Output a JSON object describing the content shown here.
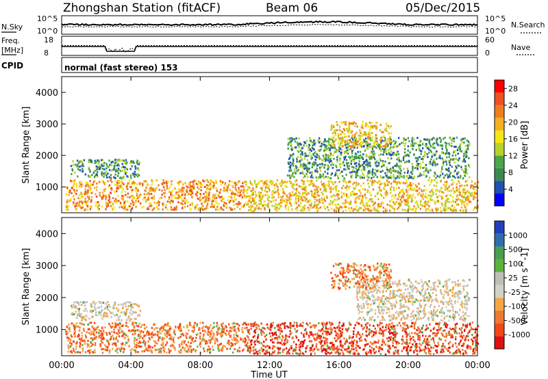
{
  "header": {
    "station": "Zhongshan Station (fitACF)",
    "beam": "Beam 06",
    "date": "05/Dec/2015"
  },
  "noise_panel": {
    "left_label": "N.Sky",
    "left_ticks": [
      "10^5",
      "10^0"
    ],
    "right_label": "N.Search",
    "right_ticks": [
      "10^5",
      "10^0"
    ]
  },
  "freq_panel": {
    "left_label_1": "Freq.",
    "left_label_2": "[MHz]",
    "left_ticks": [
      "18",
      "8"
    ],
    "right_label": "Nave",
    "right_ticks": [
      "60",
      "0"
    ]
  },
  "cpid_panel": {
    "label": "CPID",
    "text": "normal (fast stereo) 153"
  },
  "x_axis": {
    "label": "Time UT",
    "ticks": [
      "00:00",
      "04:00",
      "08:00",
      "12:00",
      "16:00",
      "20:00",
      "00:00"
    ]
  },
  "colors": {
    "power_scale": [
      "#0000ff",
      "#2050b0",
      "#3a8a50",
      "#49a74a",
      "#b8d22a",
      "#f5e614",
      "#f4b020",
      "#f07d1c",
      "#ee5020",
      "#ff0000"
    ],
    "velocity_scale": [
      "#e01010",
      "#f24818",
      "#f07830",
      "#f5a545",
      "#d2d2c8",
      "#bebeb9",
      "#5ab43c",
      "#46a050",
      "#2e6eb0",
      "#2040c0"
    ]
  },
  "chart_data": [
    {
      "type": "heatmap",
      "title": "",
      "xlabel": "Time UT",
      "ylabel": "Slant Range [km]",
      "xlim_hours": [
        0,
        24
      ],
      "ylim_km": [
        180,
        4500
      ],
      "y_ticks": [
        "1000",
        "2000",
        "3000",
        "4000"
      ],
      "colorbar": {
        "label": "Power [dB]",
        "ticks": [
          "4",
          "8",
          "12",
          "16",
          "20",
          "24",
          "28"
        ],
        "range": [
          0,
          30
        ]
      },
      "scatter_regions": [
        {
          "t_start": 0.2,
          "t_end": 10.5,
          "r_min": 300,
          "r_max": 1250,
          "value": "16-30 dB"
        },
        {
          "t_start": 0.5,
          "t_end": 4.5,
          "r_min": 1300,
          "r_max": 1900,
          "value": "4-16 dB"
        },
        {
          "t_start": 10.5,
          "t_end": 24,
          "r_min": 250,
          "r_max": 1250,
          "value": "8-24 dB"
        },
        {
          "t_start": 13,
          "t_end": 23.5,
          "r_min": 1300,
          "r_max": 2600,
          "value": "4-20 dB"
        },
        {
          "t_start": 15.5,
          "t_end": 19,
          "r_min": 2300,
          "r_max": 3100,
          "value": "8-20 dB"
        }
      ]
    },
    {
      "type": "heatmap",
      "title": "",
      "xlabel": "Time UT",
      "ylabel": "Slant Range [km]",
      "xlim_hours": [
        0,
        24
      ],
      "ylim_km": [
        180,
        4500
      ],
      "y_ticks": [
        "1000",
        "2000",
        "3000",
        "4000"
      ],
      "colorbar": {
        "label": "Velocity [m s^-1]",
        "ticks": [
          "1000",
          "500",
          "100",
          "25",
          "-25",
          "-100",
          "-500",
          "-1000"
        ],
        "range": [
          -1000,
          1000
        ]
      },
      "scatter_regions": [
        {
          "t_start": 0.2,
          "t_end": 10.5,
          "r_min": 300,
          "r_max": 1250,
          "value": "-100 to -500 m/s"
        },
        {
          "t_start": 0.5,
          "t_end": 4.5,
          "r_min": 1300,
          "r_max": 1900,
          "value": "-25 to -500 m/s"
        },
        {
          "t_start": 10.5,
          "t_end": 24,
          "r_min": 250,
          "r_max": 1250,
          "value": "-100 to -1000 m/s"
        },
        {
          "t_start": 17,
          "t_end": 23.5,
          "r_min": 1300,
          "r_max": 2600,
          "value": "-25 to 25 m/s"
        },
        {
          "t_start": 15.5,
          "t_end": 19,
          "r_min": 2300,
          "r_max": 3100,
          "value": "-100 to -500 m/s"
        }
      ]
    }
  ]
}
